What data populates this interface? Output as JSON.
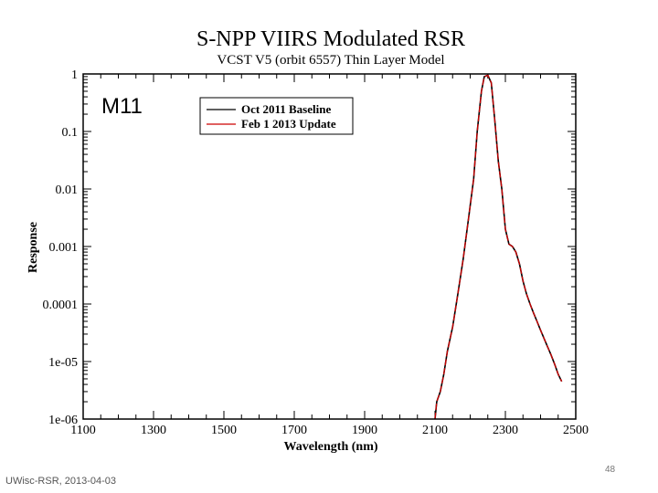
{
  "chart_data": {
    "type": "line",
    "title": "S-NPP VIIRS Modulated RSR",
    "subtitle": "VCST V5 (orbit 6557) Thin Layer Model",
    "panel_label": "M11",
    "xlabel": "Wavelength (nm)",
    "ylabel": "Response",
    "xlim": [
      1100,
      2500
    ],
    "ylim": [
      1e-06,
      1
    ],
    "yscale": "log",
    "xticks": [
      "1100",
      "1300",
      "1500",
      "1700",
      "1900",
      "2100",
      "2300",
      "2500"
    ],
    "yticks": [
      "1e-06",
      "1e-05",
      "0.0001",
      "0.001",
      "0.01",
      "0.1",
      "1"
    ],
    "legend_position": "top-left",
    "series": [
      {
        "name": "Oct 2011 Baseline",
        "color": "#000000",
        "x": [
          2100,
          2105,
          2115,
          2125,
          2135,
          2150,
          2165,
          2180,
          2195,
          2210,
          2220,
          2232,
          2240,
          2250,
          2260,
          2270,
          2280,
          2290,
          2300,
          2310,
          2320,
          2330,
          2340,
          2350,
          2360,
          2370,
          2380,
          2390,
          2400,
          2410,
          2420,
          2430,
          2440,
          2450,
          2460
        ],
        "y": [
          1e-06,
          2e-06,
          3e-06,
          6e-06,
          1.5e-05,
          4e-05,
          0.00015,
          0.0006,
          0.003,
          0.015,
          0.1,
          0.5,
          0.9,
          0.95,
          0.7,
          0.15,
          0.03,
          0.01,
          0.002,
          0.0011,
          0.001,
          0.0008,
          0.0005,
          0.00025,
          0.00015,
          0.0001,
          7e-05,
          5e-05,
          3.5e-05,
          2.5e-05,
          1.8e-05,
          1.3e-05,
          9e-06,
          6e-06,
          4.5e-06
        ]
      },
      {
        "name": "Feb 1 2013 Update",
        "color": "#cc0000",
        "x": [
          2100,
          2105,
          2115,
          2125,
          2135,
          2150,
          2165,
          2180,
          2195,
          2210,
          2220,
          2232,
          2240,
          2250,
          2260,
          2270,
          2280,
          2290,
          2300,
          2310,
          2320,
          2330,
          2340,
          2350,
          2360,
          2370,
          2380,
          2390,
          2400,
          2410,
          2420,
          2430,
          2440,
          2450,
          2460
        ],
        "y": [
          1e-06,
          2e-06,
          3e-06,
          6e-06,
          1.5e-05,
          4e-05,
          0.00015,
          0.0006,
          0.003,
          0.015,
          0.1,
          0.5,
          0.9,
          0.95,
          0.7,
          0.15,
          0.03,
          0.01,
          0.002,
          0.0011,
          0.001,
          0.0008,
          0.0005,
          0.00025,
          0.00015,
          0.0001,
          7e-05,
          5e-05,
          3.5e-05,
          2.5e-05,
          1.8e-05,
          1.3e-05,
          9e-06,
          6e-06,
          4.5e-06
        ]
      }
    ]
  },
  "footer": {
    "source": "UWisc-RSR, 2013-04-03",
    "page_number": "48"
  }
}
